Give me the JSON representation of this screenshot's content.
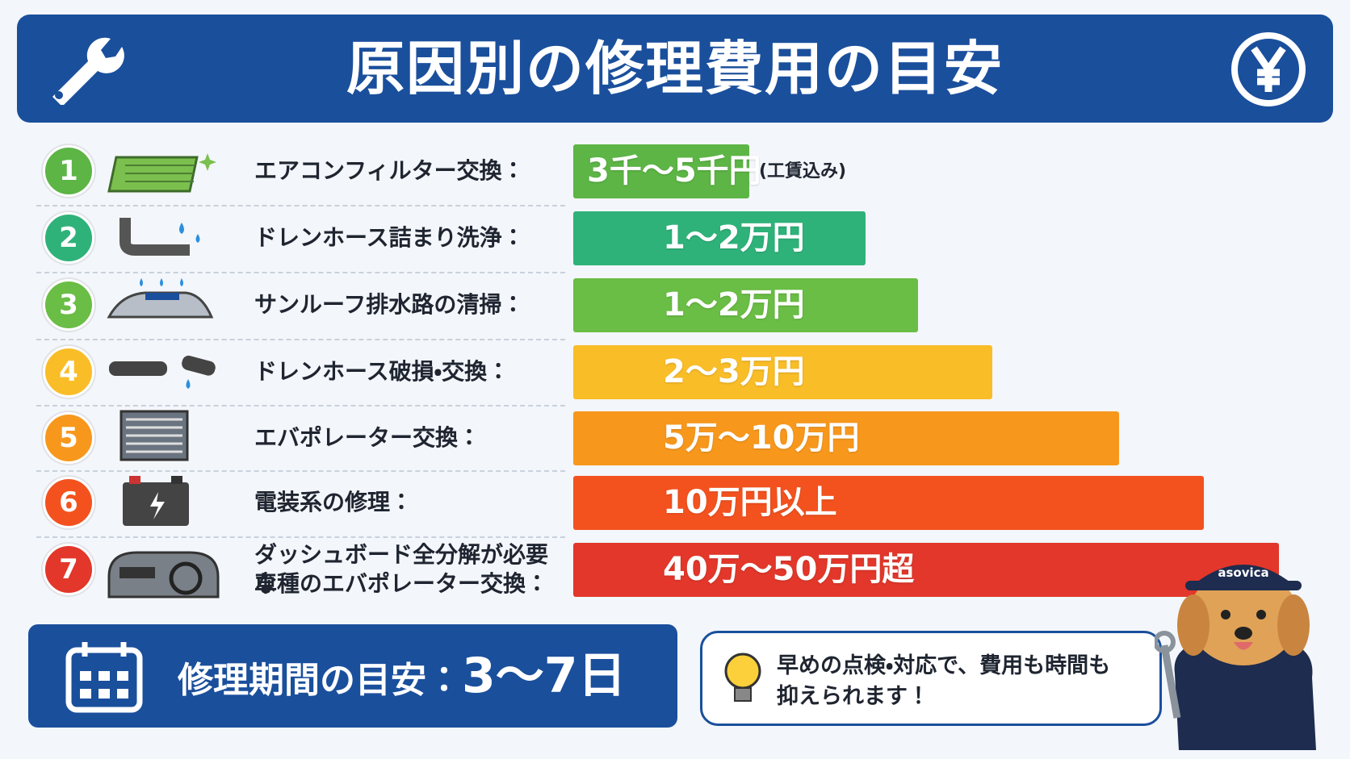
{
  "header": {
    "title": "原因別の修理費用の目安"
  },
  "rows": [
    {
      "number": 1,
      "label": [
        "エアコンフィルター交換："
      ],
      "cost": "3千〜5千円",
      "note": "(工賃込み)",
      "color": "#5cb545"
    },
    {
      "number": 2,
      "label": [
        "ドレンホース詰まり洗浄："
      ],
      "cost": "1〜2万円",
      "color": "#2fb27a"
    },
    {
      "number": 3,
      "label": [
        "サンルーフ排水路の清掃："
      ],
      "cost": "1〜2万円",
      "color": "#6abd45"
    },
    {
      "number": 4,
      "label": [
        "ドレンホース破損・交換："
      ],
      "cost": "2〜3万円",
      "color": "#f9bd28"
    },
    {
      "number": 5,
      "label": [
        "エバポレーター交換："
      ],
      "cost": "5万〜10万円",
      "color": "#f7981d"
    },
    {
      "number": 6,
      "label": [
        "電装系の修理："
      ],
      "cost": "10万円以上",
      "color": "#f3521f"
    },
    {
      "number": 7,
      "label": [
        "ダッシュボード全分解が必要な",
        "車種のエバポレーター交換："
      ],
      "cost": "40万〜50万円超",
      "color": "#e2372a"
    }
  ],
  "period": {
    "label": "修理期間の目安：",
    "value": "3〜7日"
  },
  "tip": {
    "lines": [
      "早めの点検・対応で、費用も時間も",
      "抑えられます！"
    ]
  },
  "mascot": {
    "cap": "asovica"
  }
}
